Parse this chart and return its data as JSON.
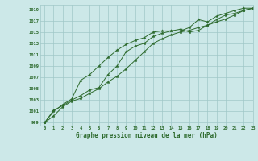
{
  "x": [
    0,
    1,
    2,
    3,
    4,
    5,
    6,
    7,
    8,
    9,
    10,
    11,
    12,
    13,
    14,
    15,
    16,
    17,
    18,
    19,
    20,
    21,
    22,
    23
  ],
  "line1": [
    999,
    1000.2,
    1001.8,
    1002.8,
    1003.3,
    1004.2,
    1005.0,
    1006.2,
    1007.2,
    1008.5,
    1010.0,
    1011.5,
    1013.0,
    1013.8,
    1014.5,
    1015.0,
    1015.3,
    1015.8,
    1016.2,
    1016.8,
    1017.3,
    1018.0,
    1018.8,
    1019.2
  ],
  "line2": [
    999,
    1001.0,
    1002.2,
    1003.2,
    1006.5,
    1007.5,
    1009.0,
    1010.5,
    1011.8,
    1012.8,
    1013.5,
    1014.0,
    1015.0,
    1015.2,
    1015.2,
    1015.5,
    1015.0,
    1015.3,
    1016.2,
    1017.2,
    1018.0,
    1018.3,
    1018.8,
    1019.2
  ],
  "line3": [
    999,
    1001.2,
    1002.0,
    1003.0,
    1003.8,
    1004.8,
    1005.2,
    1007.5,
    1009.0,
    1011.5,
    1012.5,
    1013.0,
    1014.2,
    1014.8,
    1015.2,
    1015.2,
    1015.8,
    1017.2,
    1016.8,
    1017.8,
    1018.3,
    1018.8,
    1019.2,
    1019.2
  ],
  "line_color": "#2d6a2d",
  "bg_color": "#cce8e8",
  "grid_color": "#a0c8c8",
  "ylabel_values": [
    999,
    1001,
    1003,
    1005,
    1007,
    1009,
    1011,
    1013,
    1015,
    1017,
    1019
  ],
  "xlabel": "Graphe pression niveau de la mer (hPa)",
  "ylim": [
    998.5,
    1019.8
  ],
  "xlim": [
    -0.5,
    23
  ]
}
